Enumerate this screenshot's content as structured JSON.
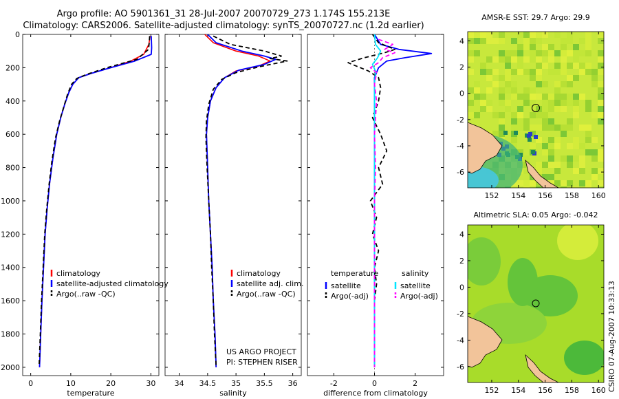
{
  "header": {
    "title_line1": "Argo profile: AO 5901361_31 28-Jul-2007 20070729_273 1.174S 155.213E",
    "title_line2": "Climatology: CARS2006. Satellite-adjusted climatology: synTS_20070727.nc (1.2d earlier)"
  },
  "colors": {
    "climatology": "#ff0000",
    "satellite": "#0000ff",
    "argo": "#000000",
    "salinity_satellite": "#00e5ff",
    "salinity_argo": "#ff00ff",
    "land": "#f2c49a"
  },
  "chart_data": [
    {
      "type": "line",
      "xlabel": "temperature",
      "xlim": [
        -2,
        32
      ],
      "xticks": [
        0,
        10,
        20,
        30
      ],
      "ylim": [
        2050,
        0
      ],
      "yticks": [
        0,
        200,
        400,
        600,
        800,
        1000,
        1200,
        1400,
        1600,
        1800,
        2000
      ],
      "legend": [
        "climatology",
        "satellite-adjusted climatology",
        "Argo(..raw -QC)"
      ],
      "series": [
        {
          "name": "climatology",
          "points": [
            [
              29.8,
              10
            ],
            [
              29.5,
              60
            ],
            [
              28.2,
              120
            ],
            [
              25,
              160
            ],
            [
              20,
              200
            ],
            [
              15,
              235
            ],
            [
              12,
              260
            ],
            [
              10.5,
              300
            ],
            [
              9.5,
              350
            ],
            [
              8.5,
              420
            ],
            [
              7.5,
              500
            ],
            [
              6.5,
              600
            ],
            [
              5.5,
              750
            ],
            [
              4.7,
              900
            ],
            [
              4.1,
              1050
            ],
            [
              3.6,
              1200
            ],
            [
              3.2,
              1400
            ],
            [
              2.8,
              1600
            ],
            [
              2.5,
              1800
            ],
            [
              2.2,
              2000
            ]
          ]
        },
        {
          "name": "satellite-adjusted climatology",
          "points": [
            [
              30.1,
              10
            ],
            [
              30.2,
              80
            ],
            [
              30.1,
              120
            ],
            [
              26,
              160
            ],
            [
              20,
              200
            ],
            [
              15,
              235
            ],
            [
              12,
              260
            ],
            [
              10.5,
              300
            ],
            [
              9.5,
              350
            ],
            [
              8.5,
              420
            ],
            [
              7.5,
              500
            ],
            [
              6.5,
              600
            ],
            [
              5.5,
              750
            ],
            [
              4.7,
              900
            ],
            [
              4.1,
              1050
            ],
            [
              3.6,
              1200
            ],
            [
              3.2,
              1400
            ],
            [
              2.8,
              1600
            ],
            [
              2.5,
              1800
            ],
            [
              2.2,
              2000
            ]
          ]
        },
        {
          "name": "Argo(..raw -QC)",
          "points": [
            [
              29.7,
              10
            ],
            [
              29.6,
              50
            ],
            [
              29.4,
              90
            ],
            [
              26.5,
              150
            ],
            [
              19,
              200
            ],
            [
              14,
              240
            ],
            [
              11.5,
              265
            ],
            [
              10.2,
              300
            ],
            [
              9.2,
              360
            ],
            [
              8.2,
              440
            ],
            [
              7.2,
              520
            ],
            [
              6.2,
              620
            ],
            [
              5.3,
              760
            ],
            [
              4.6,
              900
            ],
            [
              4.0,
              1050
            ],
            [
              3.5,
              1200
            ],
            [
              3.1,
              1400
            ],
            [
              2.7,
              1600
            ],
            [
              2.4,
              1800
            ],
            [
              2.1,
              1990
            ]
          ]
        }
      ]
    },
    {
      "type": "line",
      "xlabel": "salinity",
      "xlim": [
        33.75,
        36.15
      ],
      "xticks": [
        34,
        34.5,
        35,
        35.5,
        36
      ],
      "ylim": [
        2050,
        0
      ],
      "legend": [
        "climatology",
        "satellite adj. clim.",
        "Argo(..raw -QC)"
      ],
      "series": [
        {
          "name": "climatology",
          "points": [
            [
              34.45,
              0
            ],
            [
              34.6,
              50
            ],
            [
              35.0,
              100
            ],
            [
              35.4,
              130
            ],
            [
              35.6,
              160
            ],
            [
              35.4,
              190
            ],
            [
              35.0,
              220
            ],
            [
              34.8,
              260
            ],
            [
              34.65,
              320
            ],
            [
              34.55,
              400
            ],
            [
              34.5,
              500
            ],
            [
              34.48,
              600
            ],
            [
              34.5,
              800
            ],
            [
              34.52,
              1000
            ],
            [
              34.55,
              1200
            ],
            [
              34.58,
              1400
            ],
            [
              34.6,
              1600
            ],
            [
              34.63,
              1800
            ],
            [
              34.65,
              2000
            ]
          ]
        },
        {
          "name": "satellite adj. clim.",
          "points": [
            [
              34.5,
              0
            ],
            [
              34.65,
              50
            ],
            [
              35.1,
              100
            ],
            [
              35.5,
              130
            ],
            [
              35.7,
              150
            ],
            [
              35.5,
              180
            ],
            [
              35.05,
              215
            ],
            [
              34.8,
              260
            ],
            [
              34.65,
              320
            ],
            [
              34.55,
              400
            ],
            [
              34.5,
              500
            ],
            [
              34.48,
              600
            ],
            [
              34.5,
              800
            ],
            [
              34.52,
              1000
            ],
            [
              34.55,
              1200
            ],
            [
              34.58,
              1400
            ],
            [
              34.6,
              1600
            ],
            [
              34.63,
              1800
            ],
            [
              34.65,
              2000
            ]
          ]
        },
        {
          "name": "Argo(..raw -QC)",
          "points": [
            [
              34.6,
              10
            ],
            [
              34.9,
              60
            ],
            [
              35.5,
              100
            ],
            [
              35.8,
              130
            ],
            [
              35.6,
              145
            ],
            [
              35.9,
              160
            ],
            [
              35.4,
              195
            ],
            [
              35.0,
              230
            ],
            [
              34.75,
              270
            ],
            [
              34.6,
              330
            ],
            [
              34.52,
              420
            ],
            [
              34.48,
              520
            ],
            [
              34.47,
              620
            ],
            [
              34.49,
              800
            ],
            [
              34.52,
              1000
            ],
            [
              34.55,
              1200
            ],
            [
              34.57,
              1400
            ],
            [
              34.6,
              1600
            ],
            [
              34.62,
              1800
            ],
            [
              34.65,
              1990
            ]
          ]
        }
      ]
    },
    {
      "type": "line",
      "xlabel": "difference from climatology",
      "xlim": [
        -3.3,
        3.4
      ],
      "xticks": [
        -2,
        0,
        2
      ],
      "ylim": [
        2050,
        0
      ],
      "legend_groups": [
        "temperature",
        "salinity"
      ],
      "legend": [
        "satellite",
        "Argo(-adj)",
        "satellite",
        "Argo(-adj)"
      ],
      "series": [
        {
          "name": "temperature satellite",
          "points": [
            [
              0,
              0
            ],
            [
              0.3,
              60
            ],
            [
              1.2,
              90
            ],
            [
              2.8,
              115
            ],
            [
              1.5,
              140
            ],
            [
              0.6,
              160
            ],
            [
              0.2,
              200
            ],
            [
              0,
              260
            ],
            [
              0,
              500
            ],
            [
              0,
              1000
            ],
            [
              0,
              2000
            ]
          ]
        },
        {
          "name": "temperature Argo(-adj)",
          "points": [
            [
              -0.1,
              0
            ],
            [
              0.2,
              50
            ],
            [
              1.0,
              90
            ],
            [
              0.5,
              110
            ],
            [
              -0.5,
              140
            ],
            [
              -1.3,
              170
            ],
            [
              -0.8,
              195
            ],
            [
              -0.3,
              220
            ],
            [
              0.2,
              260
            ],
            [
              0.3,
              320
            ],
            [
              0.2,
              400
            ],
            [
              -0.1,
              500
            ],
            [
              0.3,
              600
            ],
            [
              0.6,
              700
            ],
            [
              0.2,
              800
            ],
            [
              0.4,
              900
            ],
            [
              -0.2,
              1000
            ],
            [
              0.1,
              1100
            ],
            [
              -0.1,
              1200
            ],
            [
              0.2,
              1300
            ],
            [
              0,
              1400
            ],
            [
              0.1,
              1500
            ],
            [
              0,
              1600
            ],
            [
              0,
              2000
            ]
          ]
        },
        {
          "name": "salinity satellite",
          "points": [
            [
              0,
              0
            ],
            [
              0.05,
              60
            ],
            [
              0.3,
              100
            ],
            [
              0.15,
              140
            ],
            [
              -0.1,
              180
            ],
            [
              0.05,
              220
            ],
            [
              0,
              300
            ],
            [
              0,
              600
            ],
            [
              0,
              1000
            ],
            [
              0,
              1500
            ],
            [
              0,
              2000
            ]
          ]
        },
        {
          "name": "salinity Argo(-adj)",
          "points": [
            [
              0.2,
              30
            ],
            [
              0.9,
              60
            ],
            [
              0.5,
              90
            ],
            [
              1.0,
              110
            ],
            [
              0.4,
              140
            ],
            [
              0.2,
              170
            ],
            [
              -0.2,
              200
            ],
            [
              0.1,
              230
            ],
            [
              0,
              300
            ],
            [
              0.1,
              400
            ],
            [
              0,
              600
            ],
            [
              0.05,
              800
            ],
            [
              0,
              1000
            ],
            [
              0,
              1500
            ],
            [
              0,
              2000
            ]
          ]
        }
      ]
    }
  ],
  "maps": [
    {
      "title": "AMSR-E SST: 29.7  Argo: 29.9",
      "yticks": [
        "4",
        "2",
        "0",
        "-2",
        "-4",
        "-6"
      ],
      "xticks": [
        "152",
        "154",
        "156",
        "158",
        "160"
      ]
    },
    {
      "title": "Altimetric SLA: 0.05  Argo: -0.042",
      "yticks": [
        "4",
        "2",
        "0",
        "-2",
        "-4",
        "-6"
      ],
      "xticks": [
        "152",
        "154",
        "156",
        "158",
        "160"
      ]
    }
  ],
  "annotations": {
    "project_line1": "US ARGO PROJECT",
    "project_line2": "PI: STEPHEN RISER",
    "stamp": "CSIRO 07-Aug-2007 10:33:13"
  }
}
